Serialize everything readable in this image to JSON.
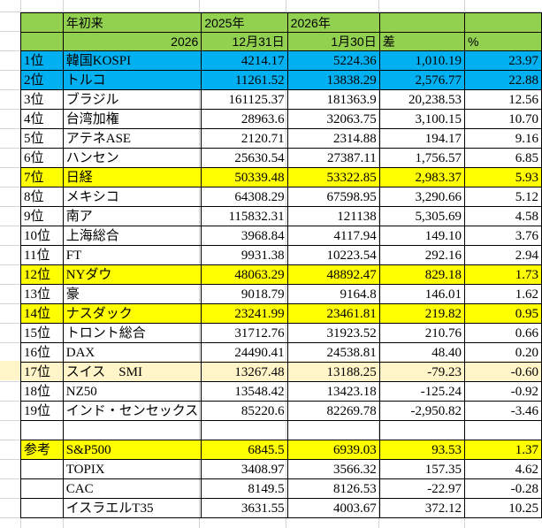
{
  "header": {
    "title": "年初来",
    "year_label": "2026",
    "col_start_year": "2025年",
    "col_start_date": "12月31日",
    "col_end_year": "2026年",
    "col_end_date": "1月30日",
    "col_diff": "差",
    "col_pct": "%"
  },
  "colors": {
    "header": "#92d050",
    "blue": "#00b0f0",
    "yellow": "#ffff00",
    "light_yellow": "#fff5c8"
  },
  "rows": [
    {
      "rank": "1位",
      "name": "韓国KOSPI",
      "start": "4214.17",
      "end": "5224.36",
      "diff": "1,010.19",
      "pct": "23.97",
      "hl": "blue"
    },
    {
      "rank": "2位",
      "name": "トルコ",
      "start": "11261.52",
      "end": "13838.29",
      "diff": "2,576.77",
      "pct": "22.88",
      "hl": "blue"
    },
    {
      "rank": "3位",
      "name": "ブラジル",
      "start": "161125.37",
      "end": "181363.9",
      "diff": "20,238.53",
      "pct": "12.56",
      "hl": ""
    },
    {
      "rank": "4位",
      "name": "台湾加権",
      "start": "28963.6",
      "end": "32063.75",
      "diff": "3,100.15",
      "pct": "10.70",
      "hl": ""
    },
    {
      "rank": "5位",
      "name": "アテネASE",
      "start": "2120.71",
      "end": "2314.88",
      "diff": "194.17",
      "pct": "9.16",
      "hl": ""
    },
    {
      "rank": "6位",
      "name": "ハンセン",
      "start": "25630.54",
      "end": "27387.11",
      "diff": "1,756.57",
      "pct": "6.85",
      "hl": ""
    },
    {
      "rank": "7位",
      "name": "日経",
      "start": "50339.48",
      "end": "53322.85",
      "diff": "2,983.37",
      "pct": "5.93",
      "hl": "yellow"
    },
    {
      "rank": "8位",
      "name": "メキシコ",
      "start": "64308.29",
      "end": "67598.95",
      "diff": "3,290.66",
      "pct": "5.12",
      "hl": ""
    },
    {
      "rank": "9位",
      "name": "南ア",
      "start": "115832.31",
      "end": "121138",
      "diff": "5,305.69",
      "pct": "4.58",
      "hl": ""
    },
    {
      "rank": "10位",
      "name": "上海総合",
      "start": "3968.84",
      "end": "4117.94",
      "diff": "149.10",
      "pct": "3.76",
      "hl": ""
    },
    {
      "rank": "11位",
      "name": "FT",
      "start": "9931.38",
      "end": "10223.54",
      "diff": "292.16",
      "pct": "2.94",
      "hl": ""
    },
    {
      "rank": "12位",
      "name": "NYダウ",
      "start": "48063.29",
      "end": "48892.47",
      "diff": "829.18",
      "pct": "1.73",
      "hl": "yellow"
    },
    {
      "rank": "13位",
      "name": "豪",
      "start": "9018.79",
      "end": "9164.8",
      "diff": "146.01",
      "pct": "1.62",
      "hl": ""
    },
    {
      "rank": "14位",
      "name": "ナスダック",
      "start": "23241.99",
      "end": "23461.81",
      "diff": "219.82",
      "pct": "0.95",
      "hl": "yellow"
    },
    {
      "rank": "15位",
      "name": "トロント総合",
      "start": "31712.76",
      "end": "31923.52",
      "diff": "210.76",
      "pct": "0.66",
      "hl": ""
    },
    {
      "rank": "16位",
      "name": "DAX",
      "start": "24490.41",
      "end": "24538.81",
      "diff": "48.40",
      "pct": "0.20",
      "hl": ""
    },
    {
      "rank": "17位",
      "name": "スイス　SMI",
      "start": "13267.48",
      "end": "13188.25",
      "diff": "-79.23",
      "pct": "-0.60",
      "hl": "lightyellow"
    },
    {
      "rank": "18位",
      "name": "NZ50",
      "start": "13548.42",
      "end": "13423.18",
      "diff": "-125.24",
      "pct": "-0.92",
      "hl": ""
    },
    {
      "rank": "19位",
      "name": "インド・センセックス",
      "start": "85220.6",
      "end": "82269.78",
      "diff": "-2,950.82",
      "pct": "-3.46",
      "hl": ""
    },
    {
      "rank": "",
      "name": "",
      "start": "",
      "end": "",
      "diff": "",
      "pct": "",
      "hl": ""
    },
    {
      "rank": "参考",
      "name": "S&P500",
      "start": "6845.5",
      "end": "6939.03",
      "diff": "93.53",
      "pct": "1.37",
      "hl": "yellow"
    },
    {
      "rank": "",
      "name": "TOPIX",
      "start": "3408.97",
      "end": "3566.32",
      "diff": "157.35",
      "pct": "4.62",
      "hl": ""
    },
    {
      "rank": "",
      "name": "CAC",
      "start": "8149.5",
      "end": "8126.53",
      "diff": "-22.97",
      "pct": "-0.28",
      "hl": ""
    },
    {
      "rank": "",
      "name": "イスラエルT35",
      "start": "3631.55",
      "end": "4003.67",
      "diff": "372.12",
      "pct": "10.25",
      "hl": ""
    }
  ]
}
